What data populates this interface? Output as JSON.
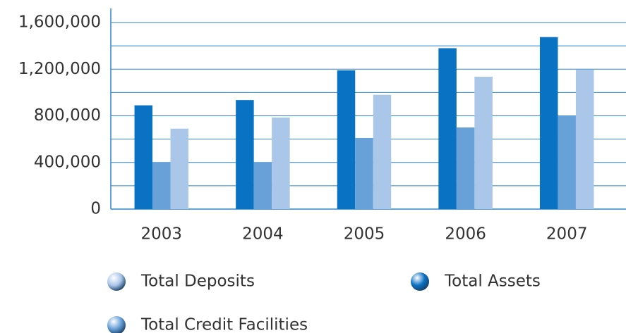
{
  "chart_data": {
    "type": "bar",
    "categories": [
      "2003",
      "2004",
      "2005",
      "2006",
      "2007"
    ],
    "series": [
      {
        "name": "Total Assets",
        "color": "#0a72c2",
        "values": [
          890000,
          935000,
          1190000,
          1380000,
          1475000
        ]
      },
      {
        "name": "Total Credit Facilities",
        "color": "#67a1d8",
        "values": [
          400000,
          400000,
          610000,
          700000,
          800000
        ]
      },
      {
        "name": "Total Deposits",
        "color": "#aac6e9",
        "values": [
          690000,
          785000,
          980000,
          1135000,
          1195000
        ]
      }
    ],
    "ylim": [
      0,
      1600000
    ],
    "yticks": [
      {
        "value": 0,
        "label": "0"
      },
      {
        "value": 400000,
        "label": "400,000"
      },
      {
        "value": 800000,
        "label": "800,000"
      },
      {
        "value": 1200000,
        "label": "1,200,000"
      },
      {
        "value": 1600000,
        "label": "1,600,000"
      }
    ],
    "minor_yticks": [
      200000,
      600000,
      1000000,
      1400000
    ],
    "grid": true
  }
}
